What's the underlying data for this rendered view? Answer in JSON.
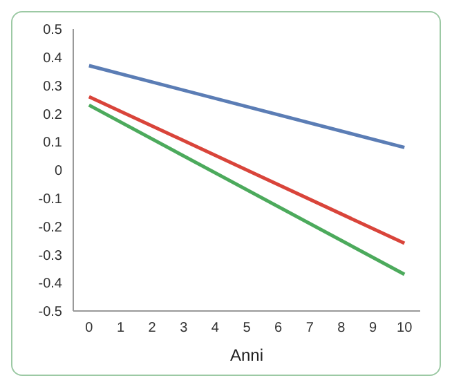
{
  "chart_data": {
    "type": "line",
    "xlabel": "Anni",
    "x": [
      0,
      10
    ],
    "series": [
      {
        "color": "#5b7db5",
        "values": [
          0.37,
          0.08
        ]
      },
      {
        "color": "#d9443a",
        "values": [
          0.26,
          -0.26
        ]
      },
      {
        "color": "#4caa5c",
        "values": [
          0.23,
          -0.37
        ]
      }
    ],
    "xlim": [
      -0.5,
      10.5
    ],
    "xticks": [
      0,
      1,
      2,
      3,
      4,
      5,
      6,
      7,
      8,
      9,
      10
    ],
    "ylim": [
      -0.5,
      0.5
    ],
    "yticks": [
      -0.5,
      -0.4,
      -0.3,
      -0.2,
      -0.1,
      0,
      0.1,
      0.2,
      0.3,
      0.4,
      0.5
    ],
    "grid": false,
    "legend": false,
    "marker": "none",
    "line_style": "solid"
  }
}
